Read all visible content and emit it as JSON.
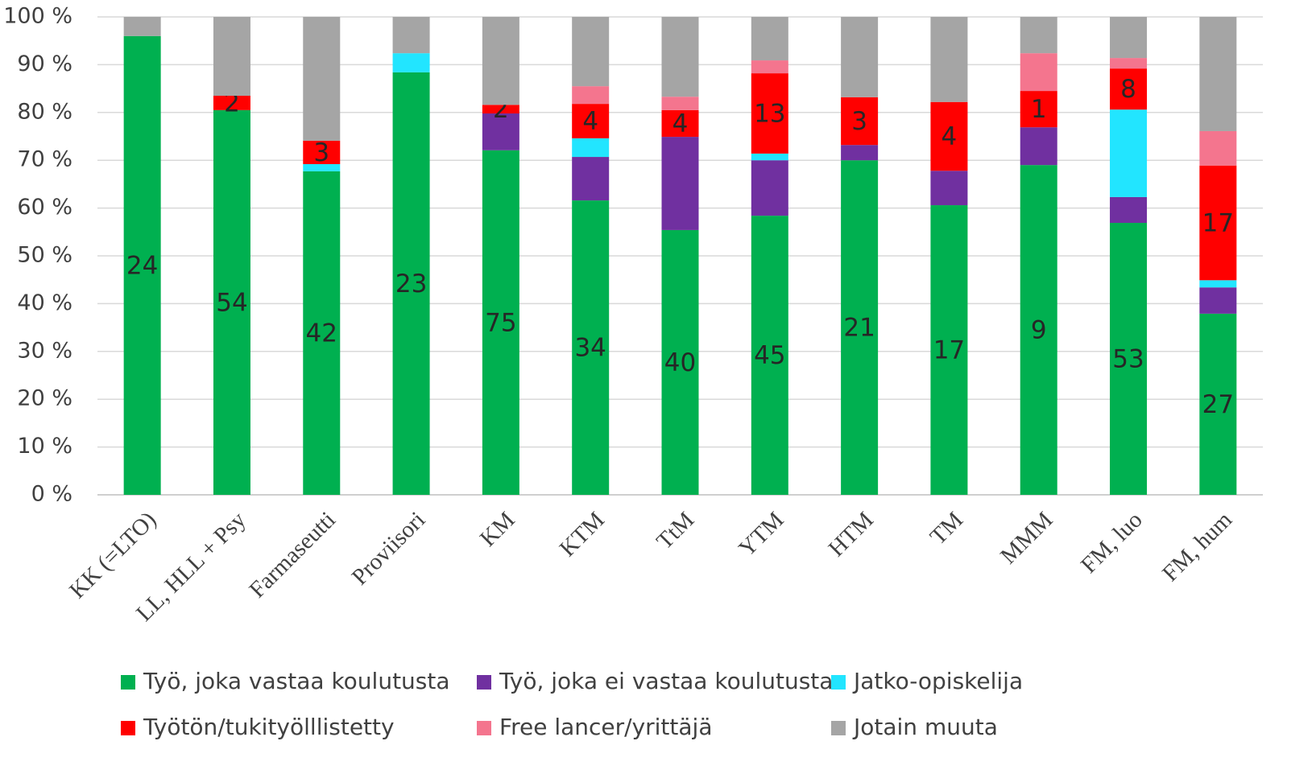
{
  "chart_data": {
    "type": "stacked_bar_100",
    "categories": [
      "KK (=LTO)",
      "LL, HLL + Psy",
      "Farmaseutti",
      "Proviisori",
      "KM",
      "KTM",
      "TtM",
      "YTM",
      "HTM",
      "TM",
      "MMM",
      "FM, luo",
      "FM, hum"
    ],
    "series": [
      {
        "name": "Työ, joka vastaa koulutusta",
        "color": "#00b050",
        "values": [
          96.0,
          80.5,
          67.7,
          88.4,
          72.1,
          61.6,
          55.4,
          58.4,
          70.0,
          60.6,
          69.0,
          56.9,
          37.9
        ],
        "counts": [
          24,
          54,
          42,
          23,
          75,
          34,
          40,
          45,
          21,
          17,
          9,
          53,
          27
        ]
      },
      {
        "name": "Työ, joka ei vastaa koulutusta",
        "color": "#7030a0",
        "values": [
          0,
          0,
          0,
          0,
          7.7,
          9.1,
          19.5,
          11.6,
          3.2,
          7.2,
          7.9,
          5.4,
          5.5
        ]
      },
      {
        "name": "Jatko-opiskelija",
        "color": "#22e5ff",
        "values": [
          0,
          0,
          1.5,
          4.0,
          0,
          3.9,
          0,
          1.4,
          0,
          0,
          0,
          18.3,
          1.5
        ]
      },
      {
        "name": "Työtön/tukityölllistetty",
        "color": "#ff0000",
        "values": [
          0,
          3.0,
          4.9,
          0,
          1.8,
          7.2,
          5.6,
          16.8,
          10.0,
          14.4,
          7.6,
          8.6,
          24.0
        ],
        "counts": [
          null,
          2,
          3,
          null,
          2,
          4,
          4,
          13,
          3,
          4,
          1,
          8,
          17
        ]
      },
      {
        "name": "Free lancer/yrittäjä",
        "color": "#f4758e",
        "values": [
          0,
          0,
          0,
          0,
          0,
          3.7,
          2.8,
          2.7,
          0,
          0,
          7.9,
          2.2,
          7.2
        ]
      },
      {
        "name": "Jotain muuta",
        "color": "#a5a5a5",
        "values": [
          4.0,
          16.5,
          25.9,
          7.6,
          18.4,
          14.5,
          16.7,
          9.1,
          16.8,
          17.8,
          7.6,
          8.6,
          23.9
        ]
      }
    ],
    "ylim": [
      0,
      100
    ],
    "yticks": [
      {
        "value": 0,
        "label": "0 %"
      },
      {
        "value": 10,
        "label": "10 %"
      },
      {
        "value": 20,
        "label": "20 %"
      },
      {
        "value": 30,
        "label": "30 %"
      },
      {
        "value": 40,
        "label": "40 %"
      },
      {
        "value": 50,
        "label": "50 %"
      },
      {
        "value": 60,
        "label": "60 %"
      },
      {
        "value": 70,
        "label": "70 %"
      },
      {
        "value": 80,
        "label": "80 %"
      },
      {
        "value": 90,
        "label": "90 %"
      },
      {
        "value": 100,
        "label": "100 %"
      }
    ],
    "grid": true,
    "legend": "bottom"
  }
}
